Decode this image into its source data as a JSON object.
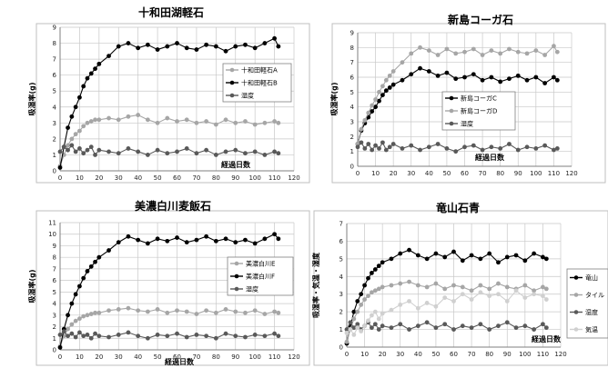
{
  "figure": {
    "background": "#ffffff"
  },
  "chart_data": [
    {
      "type": "scatter",
      "title": "十和田湖軽石",
      "xlabel": "経過日数",
      "ylabel": "吸湿率(g)",
      "xlim": [
        0,
        120
      ],
      "ylim": [
        0,
        9
      ],
      "xticks": [
        0,
        10,
        20,
        30,
        40,
        50,
        60,
        70,
        80,
        90,
        100,
        110,
        120
      ],
      "yticks": [
        0,
        1,
        2,
        3,
        4,
        5,
        6,
        7,
        8,
        9
      ],
      "grid": true,
      "legend_position": "right",
      "series": [
        {
          "name": "十和田軽石A",
          "color": "#a6a6a6",
          "x": [
            0,
            2,
            4,
            6,
            8,
            10,
            12,
            14,
            16,
            18,
            20,
            25,
            30,
            35,
            40,
            45,
            50,
            55,
            60,
            65,
            70,
            75,
            80,
            85,
            90,
            95,
            100,
            105,
            110,
            112
          ],
          "y": [
            0.3,
            1.0,
            1.6,
            2.0,
            2.3,
            2.5,
            2.8,
            3.0,
            3.1,
            3.2,
            3.2,
            3.3,
            3.2,
            3.4,
            3.5,
            3.2,
            3.0,
            3.3,
            3.1,
            3.2,
            3.0,
            3.1,
            2.9,
            3.2,
            3.0,
            3.1,
            2.9,
            3.0,
            3.1,
            3.0
          ]
        },
        {
          "name": "十和田軽石B",
          "color": "#000000",
          "x": [
            0,
            2,
            4,
            6,
            8,
            10,
            12,
            14,
            16,
            18,
            20,
            25,
            30,
            35,
            40,
            45,
            50,
            55,
            60,
            65,
            70,
            75,
            80,
            85,
            90,
            95,
            100,
            105,
            110,
            112
          ],
          "y": [
            0.2,
            1.5,
            2.7,
            3.4,
            4.0,
            4.6,
            5.3,
            5.8,
            6.1,
            6.4,
            6.7,
            7.2,
            7.8,
            8.0,
            7.7,
            7.9,
            7.6,
            7.8,
            8.0,
            7.7,
            7.6,
            7.9,
            7.8,
            7.5,
            7.8,
            7.9,
            7.7,
            8.0,
            8.3,
            7.8
          ]
        },
        {
          "name": "湿度",
          "color": "#595959",
          "x": [
            0,
            2,
            4,
            6,
            8,
            10,
            12,
            14,
            16,
            18,
            20,
            25,
            30,
            35,
            40,
            45,
            50,
            55,
            60,
            65,
            70,
            75,
            80,
            85,
            90,
            95,
            100,
            105,
            110,
            112
          ],
          "y": [
            1.2,
            1.5,
            1.3,
            1.6,
            1.2,
            1.4,
            1.1,
            1.3,
            1.5,
            1.0,
            1.3,
            1.2,
            1.1,
            1.4,
            1.2,
            1.0,
            1.3,
            1.1,
            1.2,
            1.4,
            1.1,
            1.3,
            1.0,
            1.2,
            1.3,
            1.1,
            1.2,
            1.0,
            1.2,
            1.1
          ]
        }
      ]
    },
    {
      "type": "scatter",
      "title": "新島コーガ石",
      "xlabel": "経過日数",
      "ylabel": "吸湿率(g)",
      "xlim": [
        0,
        120
      ],
      "ylim": [
        0,
        9
      ],
      "xticks": [
        0,
        10,
        20,
        30,
        40,
        50,
        60,
        70,
        80,
        90,
        100,
        110,
        120
      ],
      "yticks": [
        0,
        1,
        2,
        3,
        4,
        5,
        6,
        7,
        8,
        9
      ],
      "grid": true,
      "legend_position": "left",
      "series": [
        {
          "name": "新島コーガC",
          "color": "#000000",
          "x": [
            0,
            2,
            4,
            6,
            8,
            10,
            12,
            14,
            16,
            18,
            20,
            25,
            30,
            35,
            40,
            45,
            50,
            55,
            60,
            65,
            70,
            75,
            80,
            85,
            90,
            95,
            100,
            105,
            110,
            112
          ],
          "y": [
            1.5,
            2.4,
            2.9,
            3.3,
            3.7,
            4.0,
            4.4,
            4.8,
            5.1,
            5.3,
            5.5,
            5.8,
            6.2,
            6.6,
            6.4,
            6.1,
            6.3,
            5.9,
            6.0,
            6.2,
            5.8,
            6.0,
            5.7,
            5.9,
            6.1,
            5.8,
            6.0,
            5.6,
            6.0,
            5.8
          ]
        },
        {
          "name": "新島コーガD",
          "color": "#a6a6a6",
          "x": [
            0,
            2,
            4,
            6,
            8,
            10,
            12,
            14,
            16,
            18,
            20,
            25,
            30,
            35,
            40,
            45,
            50,
            55,
            60,
            65,
            70,
            75,
            80,
            85,
            90,
            95,
            100,
            105,
            110,
            112
          ],
          "y": [
            1.5,
            2.5,
            3.1,
            3.6,
            4.1,
            4.5,
            5.0,
            5.4,
            5.8,
            6.1,
            6.4,
            7.0,
            7.6,
            8.0,
            7.8,
            7.5,
            7.9,
            7.6,
            7.7,
            7.9,
            7.5,
            7.8,
            7.6,
            7.9,
            7.7,
            7.6,
            7.8,
            7.5,
            8.1,
            7.7
          ]
        },
        {
          "name": "湿度",
          "color": "#595959",
          "x": [
            0,
            2,
            4,
            6,
            8,
            10,
            12,
            14,
            16,
            18,
            20,
            25,
            30,
            35,
            40,
            45,
            50,
            55,
            60,
            65,
            70,
            75,
            80,
            85,
            90,
            95,
            100,
            105,
            110,
            112
          ],
          "y": [
            1.3,
            1.6,
            1.2,
            1.5,
            1.1,
            1.4,
            1.2,
            1.6,
            1.1,
            1.3,
            1.5,
            1.2,
            1.4,
            1.1,
            1.3,
            1.5,
            1.2,
            1.0,
            1.3,
            1.4,
            1.1,
            1.3,
            1.2,
            1.5,
            1.1,
            1.3,
            1.2,
            1.4,
            1.1,
            1.2
          ]
        }
      ]
    },
    {
      "type": "scatter",
      "title": "美濃白川麦飯石",
      "xlabel": "経過日数",
      "ylabel": "吸湿率(g)",
      "xlim": [
        0,
        120
      ],
      "ylim": [
        0,
        11
      ],
      "xticks": [
        0,
        10,
        20,
        30,
        40,
        50,
        60,
        70,
        80,
        90,
        100,
        110,
        120
      ],
      "yticks": [
        0,
        1,
        2,
        3,
        4,
        5,
        6,
        7,
        8,
        9,
        10,
        11
      ],
      "grid": true,
      "legend_position": "right",
      "series": [
        {
          "name": "美濃白川E",
          "color": "#a6a6a6",
          "x": [
            0,
            2,
            4,
            6,
            8,
            10,
            12,
            14,
            16,
            18,
            20,
            25,
            30,
            35,
            40,
            45,
            50,
            55,
            60,
            65,
            70,
            75,
            80,
            85,
            90,
            95,
            100,
            105,
            110,
            112
          ],
          "y": [
            0.3,
            1.2,
            1.8,
            2.2,
            2.5,
            2.7,
            2.9,
            3.0,
            3.1,
            3.2,
            3.2,
            3.4,
            3.5,
            3.6,
            3.4,
            3.3,
            3.5,
            3.2,
            3.4,
            3.3,
            3.1,
            3.4,
            3.2,
            3.5,
            3.3,
            3.2,
            3.4,
            3.1,
            3.3,
            3.2
          ]
        },
        {
          "name": "美濃白川F",
          "color": "#000000",
          "x": [
            0,
            2,
            4,
            6,
            8,
            10,
            12,
            14,
            16,
            18,
            20,
            25,
            30,
            35,
            40,
            45,
            50,
            55,
            60,
            65,
            70,
            75,
            80,
            85,
            90,
            95,
            100,
            105,
            110,
            112
          ],
          "y": [
            0.2,
            1.8,
            3.0,
            4.0,
            4.8,
            5.5,
            6.2,
            6.8,
            7.2,
            7.6,
            8.0,
            8.6,
            9.3,
            9.8,
            9.5,
            9.2,
            9.6,
            9.4,
            9.7,
            9.3,
            9.5,
            9.8,
            9.4,
            9.6,
            9.3,
            9.5,
            9.2,
            9.6,
            10.0,
            9.6
          ]
        },
        {
          "name": "湿度",
          "color": "#595959",
          "x": [
            0,
            2,
            4,
            6,
            8,
            10,
            12,
            14,
            16,
            18,
            20,
            25,
            30,
            35,
            40,
            45,
            50,
            55,
            60,
            65,
            70,
            75,
            80,
            85,
            90,
            95,
            100,
            105,
            110,
            112
          ],
          "y": [
            1.3,
            1.6,
            1.2,
            1.4,
            1.1,
            1.5,
            1.2,
            1.3,
            1.0,
            1.4,
            1.2,
            1.1,
            1.3,
            1.5,
            1.2,
            1.0,
            1.3,
            1.2,
            1.4,
            1.1,
            1.3,
            1.2,
            1.0,
            1.4,
            1.2,
            1.1,
            1.3,
            1.2,
            1.4,
            1.2
          ]
        }
      ]
    },
    {
      "type": "scatter",
      "title": "竜山石青",
      "xlabel": "経過日数",
      "ylabel": "吸湿率・気温・湿度",
      "xlim": [
        0,
        120
      ],
      "ylim": [
        0,
        7
      ],
      "xticks": [
        0,
        10,
        20,
        30,
        40,
        50,
        60,
        70,
        80,
        90,
        100,
        110,
        120
      ],
      "yticks": [
        0,
        1,
        2,
        3,
        4,
        5,
        6,
        7
      ],
      "grid": true,
      "legend_position": "outside-right (clipped)",
      "series": [
        {
          "name": "竜山",
          "color": "#000000",
          "x": [
            0,
            2,
            4,
            6,
            8,
            10,
            12,
            14,
            16,
            18,
            20,
            25,
            30,
            35,
            40,
            45,
            50,
            55,
            60,
            65,
            70,
            75,
            80,
            85,
            90,
            95,
            100,
            105,
            110,
            112
          ],
          "y": [
            0.2,
            1.2,
            2.0,
            2.6,
            3.0,
            3.5,
            3.9,
            4.2,
            4.4,
            4.6,
            4.8,
            5.0,
            5.3,
            5.5,
            5.2,
            5.0,
            5.3,
            5.1,
            5.4,
            4.9,
            5.2,
            5.0,
            5.3,
            4.8,
            5.1,
            5.2,
            4.9,
            5.3,
            5.1,
            5.0
          ]
        },
        {
          "name": "タイル",
          "color": "#a6a6a6",
          "x": [
            0,
            2,
            4,
            6,
            8,
            10,
            12,
            14,
            16,
            18,
            20,
            25,
            30,
            35,
            40,
            45,
            50,
            55,
            60,
            65,
            70,
            75,
            80,
            85,
            90,
            95,
            100,
            105,
            110,
            112
          ],
          "y": [
            0.3,
            1.0,
            1.6,
            2.0,
            2.4,
            2.7,
            2.9,
            3.1,
            3.2,
            3.3,
            3.4,
            3.5,
            3.6,
            3.7,
            3.5,
            3.4,
            3.6,
            3.3,
            3.5,
            3.4,
            3.2,
            3.5,
            3.3,
            3.6,
            3.4,
            3.3,
            3.5,
            3.2,
            3.4,
            3.3
          ]
        },
        {
          "name": "湿度",
          "color": "#595959",
          "x": [
            0,
            2,
            4,
            6,
            8,
            10,
            12,
            14,
            16,
            18,
            20,
            25,
            30,
            35,
            40,
            45,
            50,
            55,
            60,
            65,
            70,
            75,
            80,
            85,
            90,
            95,
            100,
            105,
            110,
            112
          ],
          "y": [
            1.0,
            1.4,
            1.1,
            1.3,
            1.0,
            1.2,
            1.4,
            1.1,
            1.3,
            1.0,
            1.2,
            1.1,
            1.3,
            1.0,
            1.2,
            1.4,
            1.1,
            1.3,
            1.0,
            1.2,
            1.1,
            1.3,
            1.0,
            1.2,
            1.4,
            1.1,
            1.2,
            1.0,
            1.3,
            1.1
          ]
        },
        {
          "name": "気温",
          "color": "#d0d0d0",
          "x": [
            0,
            2,
            4,
            6,
            8,
            10,
            12,
            14,
            16,
            18,
            20,
            25,
            30,
            35,
            40,
            45,
            50,
            55,
            60,
            65,
            70,
            75,
            80,
            85,
            90,
            95,
            100,
            105,
            110,
            112
          ],
          "y": [
            0.8,
            1.0,
            0.7,
            1.1,
            0.9,
            1.2,
            1.5,
            1.8,
            2.0,
            1.6,
            1.9,
            2.1,
            2.4,
            2.6,
            2.2,
            2.5,
            2.3,
            2.8,
            2.6,
            3.0,
            2.7,
            3.1,
            2.9,
            3.0,
            2.6,
            3.2,
            2.8,
            3.0,
            2.9,
            2.7
          ]
        }
      ]
    }
  ]
}
